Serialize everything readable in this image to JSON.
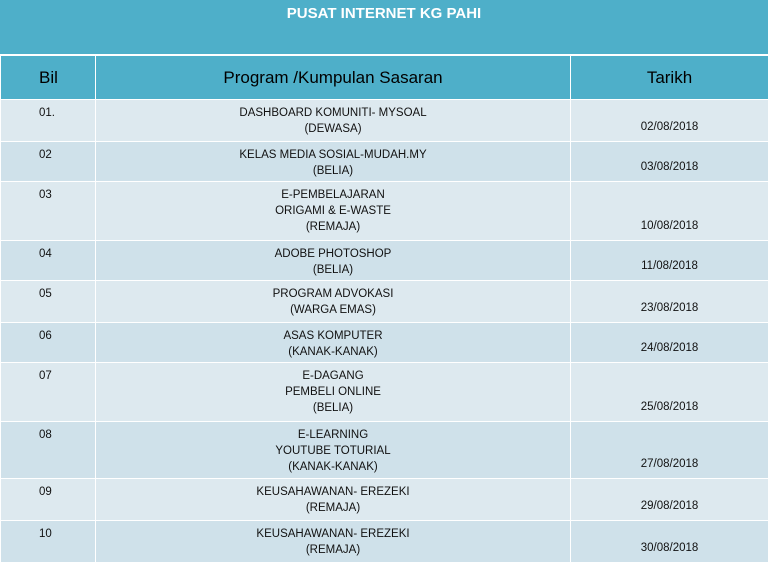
{
  "title": "PUSAT INTERNET KG PAHI",
  "headers": {
    "bil": "Bil",
    "program": "Program /Kumpulan Sasaran",
    "tarikh": "Tarikh"
  },
  "rows": [
    {
      "bil": "01.",
      "program": [
        "DASHBOARD KOMUNITI- MYSOAL",
        "(DEWASA)"
      ],
      "tarikh": "02/08/2018"
    },
    {
      "bil": "02",
      "program": [
        "KELAS MEDIA SOSIAL-MUDAH.MY",
        "(BELIA)"
      ],
      "tarikh": "03/08/2018"
    },
    {
      "bil": "03",
      "program": [
        "E-PEMBELAJARAN",
        "ORIGAMI & E-WASTE",
        "(REMAJA)"
      ],
      "tarikh": "10/08/2018"
    },
    {
      "bil": "04",
      "program": [
        "ADOBE PHOTOSHOP",
        "(BELIA)"
      ],
      "tarikh": "11/08/2018"
    },
    {
      "bil": "05",
      "program": [
        "PROGRAM ADVOKASI",
        "(WARGA EMAS)"
      ],
      "tarikh": "23/08/2018"
    },
    {
      "bil": "06",
      "program": [
        "ASAS KOMPUTER",
        "(KANAK-KANAK)"
      ],
      "tarikh": "24/08/2018"
    },
    {
      "bil": "07",
      "program": [
        "E-DAGANG",
        "PEMBELI ONLINE",
        "(BELIA)"
      ],
      "tarikh": "25/08/2018"
    },
    {
      "bil": "08",
      "program": [
        "E-LEARNING",
        "YOUTUBE TOTURIAL",
        "(KANAK-KANAK)"
      ],
      "tarikh": "27/08/2018"
    },
    {
      "bil": "09",
      "program": [
        "KEUSAHAWANAN-  EREZEKI",
        "(REMAJA)"
      ],
      "tarikh": "29/08/2018"
    },
    {
      "bil": "10",
      "program": [
        "KEUSAHAWANAN-  EREZEKI",
        "(REMAJA)"
      ],
      "tarikh": "30/08/2018"
    }
  ],
  "colors": {
    "header": "#4eafc9",
    "row_light": "#dde9ef",
    "row_dark": "#cfe1ea"
  }
}
